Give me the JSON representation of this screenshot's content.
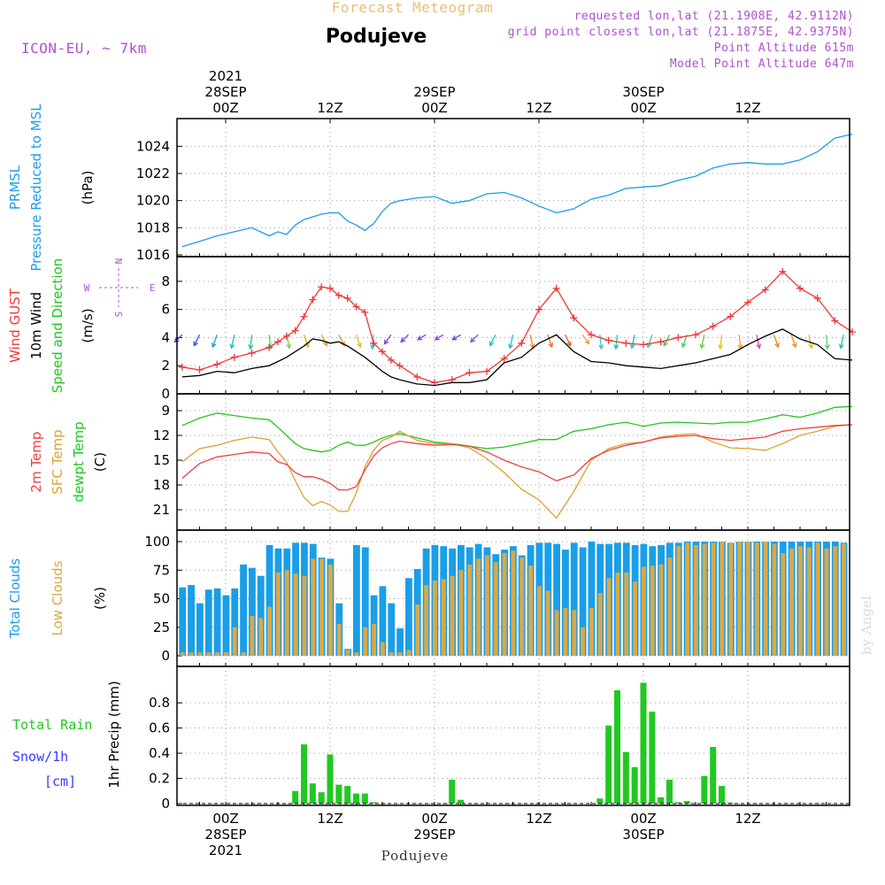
{
  "header": {
    "product": "Forecast Meteogram",
    "location": "Podujeve",
    "model": "ICON-EU, ~ 7km",
    "requested": "requested lon,lat (21.1908E, 42.9112N)",
    "gridpoint": "grid point closest lon,lat (21.1875E, 42.9375N)",
    "point_alt": "Point Altitude 615m",
    "model_alt": "Model Point Altitude 647m",
    "credit": "by Angel",
    "footer": "Podujeve"
  },
  "colors": {
    "pressure": "#1a9ee8",
    "gust": "#f03838",
    "wind": "#000000",
    "temp2m": "#f04040",
    "sfc": "#e0a030",
    "dewpt": "#20c820",
    "total_clouds": "#1a9ee8",
    "low_clouds": "#d8a848",
    "rain": "#22c822",
    "snow": "#3a3aff",
    "label_purple": "#b050d0",
    "header_orange": "#e8c070"
  },
  "time_axis": {
    "top_ticks": [
      "00Z",
      "12Z",
      "00Z",
      "12Z",
      "00Z",
      "12Z"
    ],
    "top_days": [
      {
        "year": "2021",
        "day": "28SEP"
      },
      {
        "day": "29SEP"
      },
      {
        "day": "30SEP"
      }
    ],
    "bottom_ticks": [
      "00Z",
      "12Z",
      "00Z",
      "12Z",
      "00Z",
      "12Z"
    ],
    "bottom_days": [
      {
        "day": "28SEP",
        "year": "2021"
      },
      {
        "day": "29SEP"
      },
      {
        "day": "30SEP"
      }
    ]
  },
  "chart_data": [
    {
      "type": "line",
      "panel": "pressure",
      "ylabel_lines": [
        "PRMSL",
        "Pressure Reduced to MSL"
      ],
      "unit": "(hPa)",
      "ylim": [
        1016,
        1025
      ],
      "yticks": [
        1016,
        1018,
        1020,
        1022,
        1024
      ],
      "x_hours": [
        -5,
        -3,
        -1,
        1,
        3,
        5,
        6,
        7,
        8,
        9,
        10,
        11,
        12,
        13,
        14,
        15,
        16,
        17,
        18,
        19,
        20,
        22,
        24,
        26,
        28,
        30,
        32,
        34,
        36,
        38,
        40,
        42,
        44,
        46,
        48,
        50,
        52,
        54,
        56,
        58,
        60,
        62,
        64,
        66,
        68,
        70,
        72
      ],
      "series": [
        {
          "values": [
            1016.6,
            1017.0,
            1017.4,
            1017.7,
            1018.0,
            1017.4,
            1017.7,
            1017.5,
            1018.2,
            1018.6,
            1018.8,
            1019.0,
            1019.1,
            1019.1,
            1018.5,
            1018.2,
            1017.8,
            1018.3,
            1019.2,
            1019.8,
            1020.0,
            1020.2,
            1020.3,
            1019.8,
            1020.0,
            1020.5,
            1020.6,
            1020.2,
            1019.6,
            1019.1,
            1019.4,
            1020.1,
            1020.4,
            1020.9,
            1021.0,
            1021.1,
            1021.5,
            1021.8,
            1022.4,
            1022.7,
            1022.8,
            1022.7,
            1022.7,
            1023.0,
            1023.6,
            1024.6,
            1024.9
          ]
        }
      ]
    },
    {
      "type": "line",
      "panel": "wind",
      "ylabel_lines": [
        "Wind GUST",
        "10m Wind",
        "Speed and Direction"
      ],
      "unit": "(m/s)",
      "compass": {
        "n": "N",
        "s": "S",
        "w": "W",
        "e": "E"
      },
      "ylim": [
        0,
        9
      ],
      "yticks": [
        0,
        2,
        4,
        6,
        8
      ],
      "x_hours": [
        -5,
        -3,
        -1,
        1,
        3,
        5,
        6,
        7,
        8,
        9,
        10,
        11,
        12,
        13,
        14,
        15,
        16,
        17,
        18,
        19,
        20,
        22,
        24,
        26,
        28,
        30,
        32,
        34,
        36,
        38,
        40,
        42,
        44,
        46,
        48,
        50,
        52,
        54,
        56,
        58,
        60,
        62,
        64,
        66,
        68,
        70,
        72
      ],
      "series": [
        {
          "name": "Wind GUST",
          "values": [
            1.9,
            1.7,
            2.1,
            2.6,
            2.9,
            3.3,
            3.7,
            4.1,
            4.5,
            5.5,
            6.7,
            7.6,
            7.5,
            7.0,
            6.8,
            6.2,
            5.8,
            3.6,
            3.0,
            2.4,
            2.0,
            1.2,
            0.8,
            1.0,
            1.5,
            1.6,
            2.5,
            3.6,
            6.0,
            7.5,
            5.4,
            4.2,
            3.8,
            3.6,
            3.5,
            3.7,
            4.0,
            4.2,
            4.8,
            5.5,
            6.5,
            7.4,
            8.7,
            7.5,
            6.8,
            5.2,
            4.4
          ]
        },
        {
          "name": "10m Wind",
          "values": [
            1.2,
            1.3,
            1.6,
            1.5,
            1.8,
            2.0,
            2.3,
            2.6,
            3.0,
            3.4,
            3.9,
            3.8,
            3.6,
            3.7,
            3.4,
            3.0,
            2.6,
            2.1,
            1.6,
            1.2,
            1.0,
            0.7,
            0.6,
            0.8,
            0.8,
            1.0,
            2.2,
            2.6,
            3.6,
            4.2,
            3.0,
            2.3,
            2.2,
            2.0,
            1.9,
            1.8,
            2.0,
            2.2,
            2.5,
            2.8,
            3.5,
            4.1,
            4.6,
            3.9,
            3.5,
            2.5,
            2.4
          ]
        }
      ],
      "arrows": {
        "y_level": 4.2,
        "hours": [
          -5,
          -3,
          -1,
          1,
          3,
          5,
          7,
          9,
          11,
          13,
          15,
          17,
          19,
          21,
          23,
          25,
          27,
          29,
          31,
          33,
          35,
          37,
          39,
          41,
          43,
          45,
          47,
          49,
          51,
          53,
          55,
          57,
          59,
          61,
          63,
          65,
          67,
          69,
          71
        ],
        "dir_deg": [
          300,
          320,
          330,
          340,
          350,
          10,
          20,
          30,
          40,
          40,
          30,
          350,
          310,
          300,
          290,
          290,
          290,
          300,
          320,
          340,
          20,
          30,
          40,
          50,
          10,
          350,
          340,
          330,
          320,
          330,
          340,
          350,
          10,
          20,
          30,
          30,
          20,
          10,
          340
        ],
        "colors": [
          "#3050f0",
          "#3050f0",
          "#20a0e0",
          "#20c0c0",
          "#20c0a0",
          "#40d060",
          "#80d040",
          "#e0b020",
          "#f0a020",
          "#f09020",
          "#e0c020",
          "#40c0e0",
          "#8040e0",
          "#8040e0",
          "#8040e0",
          "#8040e0",
          "#6040e0",
          "#6060e0",
          "#20c0c0",
          "#20c0c0",
          "#f08020",
          "#f07020",
          "#e06020",
          "#f0a040",
          "#40c0c0",
          "#20c0c0",
          "#20c0c0",
          "#40c0a0",
          "#40d060",
          "#40d060",
          "#60d040",
          "#e0c020",
          "#f0a020",
          "#e040c0",
          "#f08020",
          "#f09020",
          "#e0c020",
          "#60d060",
          "#20c0a0"
        ]
      }
    },
    {
      "type": "line",
      "panel": "temperature",
      "ylabel_lines": [
        "2m Temp",
        "SFC Temp",
        "dewpt Temp"
      ],
      "unit": "(C)",
      "ylim": [
        7.5,
        22.5
      ],
      "yticks": [
        9,
        12,
        15,
        18,
        21
      ],
      "x_hours": [
        -5,
        -3,
        -1,
        1,
        3,
        5,
        6,
        7,
        8,
        9,
        10,
        11,
        12,
        13,
        14,
        15,
        16,
        17,
        18,
        19,
        20,
        22,
        24,
        26,
        28,
        30,
        32,
        34,
        36,
        38,
        40,
        42,
        44,
        46,
        48,
        50,
        52,
        54,
        56,
        58,
        60,
        62,
        64,
        66,
        68,
        70,
        72
      ],
      "series": [
        {
          "name": "2m Temp",
          "values": [
            17.2,
            15.4,
            14.6,
            14.3,
            14.0,
            14.2,
            15.2,
            15.5,
            16.5,
            17.0,
            17.0,
            17.3,
            17.8,
            18.6,
            18.6,
            18.2,
            16.2,
            14.5,
            13.5,
            13.0,
            12.7,
            13.0,
            13.2,
            13.1,
            13.3,
            14.0,
            15.0,
            15.8,
            16.4,
            17.5,
            16.8,
            14.8,
            13.8,
            13.2,
            12.8,
            12.3,
            12.1,
            12.0,
            12.4,
            12.6,
            12.4,
            12.2,
            11.5,
            11.2,
            11.0,
            10.8,
            10.7
          ]
        },
        {
          "name": "SFC Temp",
          "values": [
            15.2,
            13.6,
            13.2,
            12.6,
            12.2,
            12.5,
            14.0,
            15.2,
            17.5,
            19.5,
            20.5,
            20.0,
            20.4,
            21.2,
            21.2,
            19.0,
            15.8,
            13.8,
            12.6,
            12.2,
            11.5,
            12.6,
            13.0,
            13.0,
            13.5,
            14.8,
            16.5,
            18.5,
            19.8,
            22.0,
            18.8,
            15.0,
            13.6,
            13.0,
            12.8,
            12.2,
            11.9,
            11.8,
            12.8,
            13.5,
            13.6,
            13.8,
            13.0,
            12.0,
            11.5,
            10.9,
            10.7
          ]
        },
        {
          "name": "dewpt Temp",
          "values": [
            10.8,
            9.9,
            9.3,
            9.6,
            9.9,
            10.1,
            11.0,
            12.0,
            13.0,
            13.6,
            13.8,
            14.0,
            13.8,
            13.2,
            12.8,
            13.2,
            13.2,
            12.8,
            12.3,
            12.0,
            11.8,
            12.3,
            12.8,
            13.0,
            13.3,
            13.6,
            13.4,
            13.0,
            12.5,
            12.5,
            11.5,
            11.2,
            10.7,
            10.4,
            10.9,
            10.5,
            10.4,
            10.5,
            10.6,
            10.4,
            10.4,
            10.0,
            9.5,
            9.8,
            9.3,
            8.6,
            8.5
          ]
        }
      ]
    },
    {
      "type": "bar",
      "panel": "clouds",
      "ylabel_lines": [
        "Total Clouds",
        "Low Clouds"
      ],
      "unit": "(%)",
      "ylim": [
        0,
        100
      ],
      "yticks": [
        0,
        25,
        50,
        75,
        100
      ],
      "x_start_hour": -5,
      "series": [
        {
          "name": "Total Clouds",
          "values": [
            60,
            62,
            46,
            58,
            59,
            53,
            59,
            80,
            77,
            70,
            97,
            94,
            94,
            99,
            99,
            98,
            86,
            85,
            46,
            6,
            97,
            95,
            53,
            61,
            46,
            24,
            68,
            76,
            94,
            97,
            96,
            94,
            97,
            95,
            98,
            95,
            89,
            93,
            96,
            88,
            97,
            99,
            99,
            98,
            93,
            99,
            95,
            100,
            98,
            98,
            99,
            99,
            97,
            98,
            96,
            97,
            99,
            99,
            100,
            100,
            100,
            100,
            100,
            99,
            100,
            100,
            100,
            100,
            100,
            100,
            100,
            100,
            100,
            100,
            100,
            100,
            99,
            98,
            98,
            100
          ]
        },
        {
          "name": "Low Clouds",
          "values": [
            3,
            3,
            3,
            3,
            3,
            3,
            25,
            3,
            35,
            33,
            43,
            73,
            75,
            72,
            70,
            85,
            85,
            80,
            28,
            5,
            3,
            25,
            28,
            12,
            3,
            3,
            5,
            45,
            62,
            66,
            67,
            70,
            75,
            80,
            85,
            88,
            82,
            90,
            92,
            86,
            79,
            61,
            57,
            40,
            42,
            40,
            25,
            42,
            55,
            68,
            73,
            73,
            65,
            78,
            79,
            80,
            86,
            96,
            99,
            97,
            98,
            99,
            100,
            99,
            100,
            100,
            99,
            100,
            98,
            90,
            94,
            96,
            95,
            99,
            94,
            96,
            98,
            98,
            98,
            99
          ]
        }
      ]
    },
    {
      "type": "bar",
      "panel": "precip",
      "ylabel_lines": [
        "1hr Precip (mm)"
      ],
      "legend_lines": [
        "Total  Rain",
        "Snow/1h",
        "[cm]"
      ],
      "ylim": [
        0,
        0.97
      ],
      "yticks": [
        0,
        0.2,
        0.4,
        0.6,
        0.8
      ],
      "ytick_labels": [
        "0",
        "0.2",
        "0.4",
        "0.6",
        "0.8"
      ],
      "x_hours": [
        8,
        9,
        10,
        11,
        12,
        13,
        14,
        15,
        16,
        17,
        26,
        27,
        43,
        44,
        45,
        46,
        47,
        48,
        49,
        50,
        51,
        52,
        53,
        55,
        56,
        57,
        58
      ],
      "series": [
        {
          "name": "Total Rain",
          "values": [
            0.1,
            0.47,
            0.16,
            0.09,
            0.39,
            0.15,
            0.14,
            0.08,
            0.08,
            0.01,
            0.19,
            0.03,
            0.04,
            0.62,
            0.9,
            0.41,
            0.29,
            0.96,
            0.73,
            0.05,
            0.19,
            0.01,
            0.02,
            0.22,
            0.45,
            0.14,
            0.0
          ]
        }
      ]
    }
  ]
}
